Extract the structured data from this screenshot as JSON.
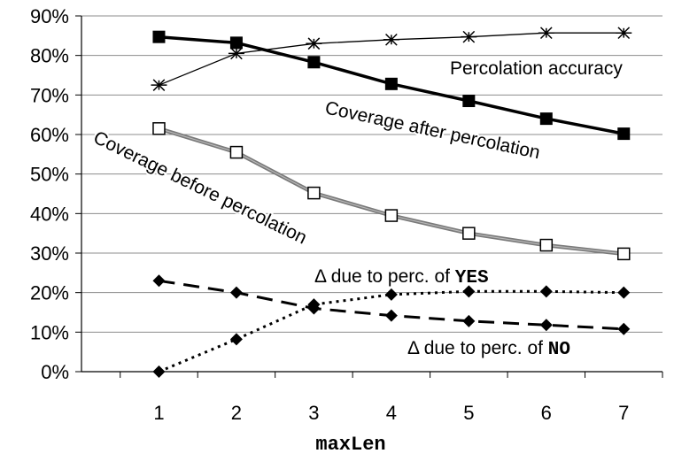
{
  "chart_data": {
    "type": "line",
    "title": "",
    "xlabel": "maxLen",
    "ylabel": "",
    "x": [
      1,
      2,
      3,
      4,
      5,
      6,
      7
    ],
    "ylim": [
      0,
      90
    ],
    "xlim": [
      0,
      7.5
    ],
    "y_ticks": [
      "0%",
      "10%",
      "20%",
      "30%",
      "40%",
      "50%",
      "60%",
      "70%",
      "80%",
      "90%"
    ],
    "x_ticks": [
      "1",
      "2",
      "3",
      "4",
      "5",
      "6",
      "7"
    ],
    "grid": "horizontal",
    "legend": "none (inline labels)",
    "series": [
      {
        "name": "Percolation accuracy",
        "values": [
          72.5,
          80.5,
          83,
          84,
          84.7,
          85.7,
          85.7
        ],
        "marker": "asterisk-icon",
        "line": "thin-solid",
        "color": "#000000"
      },
      {
        "name": "Coverage after percolation",
        "values": [
          84.7,
          83.2,
          78.3,
          72.8,
          68.5,
          64,
          60.2
        ],
        "marker": "filled-square-icon",
        "line": "thick-solid",
        "color": "#000000"
      },
      {
        "name": "Coverage before percolation",
        "values": [
          61.5,
          55.5,
          45.2,
          39.5,
          35,
          32,
          29.8
        ],
        "marker": "open-square-icon",
        "line": "thick-gray",
        "color": "#808080"
      },
      {
        "name": "Δ due to perc. of YES",
        "label_prefix": "Δ due to perc. of ",
        "label_code": "YES",
        "values": [
          0,
          8.2,
          17,
          19.5,
          20.3,
          20.3,
          20
        ],
        "marker": "filled-diamond-icon",
        "line": "dotted",
        "color": "#000000"
      },
      {
        "name": "Δ due to perc. of NO",
        "label_prefix": "Δ due to perc. of ",
        "label_code": "NO",
        "values": [
          23,
          20,
          16,
          14.2,
          12.8,
          11.8,
          10.8
        ],
        "marker": "filled-diamond-icon",
        "line": "long-dash",
        "color": "#000000"
      }
    ]
  }
}
